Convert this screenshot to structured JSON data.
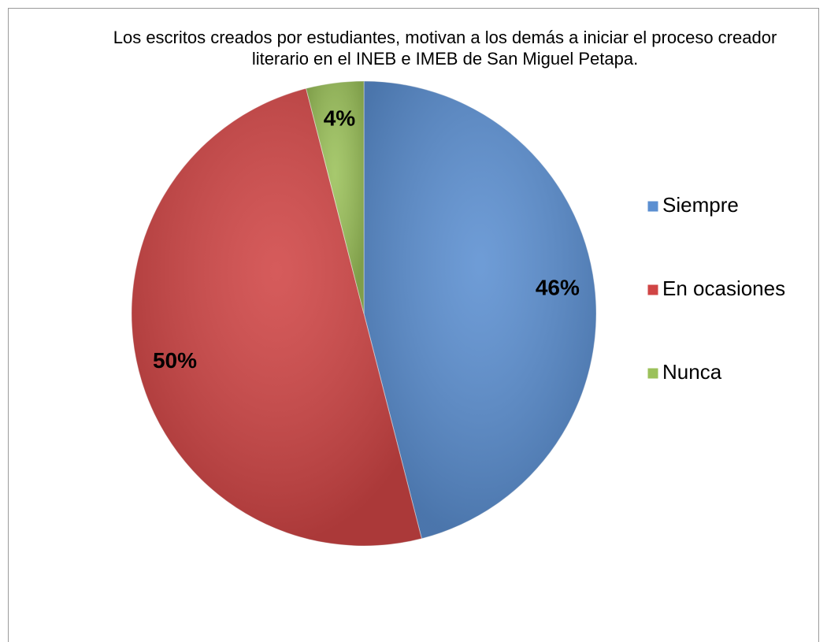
{
  "chart_data": {
    "type": "pie",
    "title": "Los escritos creados por estudiantes, motivan a los demás a iniciar el proceso creador literario en el INEB e IMEB de San Miguel Petapa.",
    "categories": [
      "Siempre",
      "En ocasiones",
      "Nunca"
    ],
    "values": [
      46,
      50,
      4
    ],
    "value_labels": [
      "46%",
      "50%",
      "4%"
    ],
    "colors": [
      "#5b8fd1",
      "#d04545",
      "#9bc15a"
    ],
    "legend": "right"
  }
}
